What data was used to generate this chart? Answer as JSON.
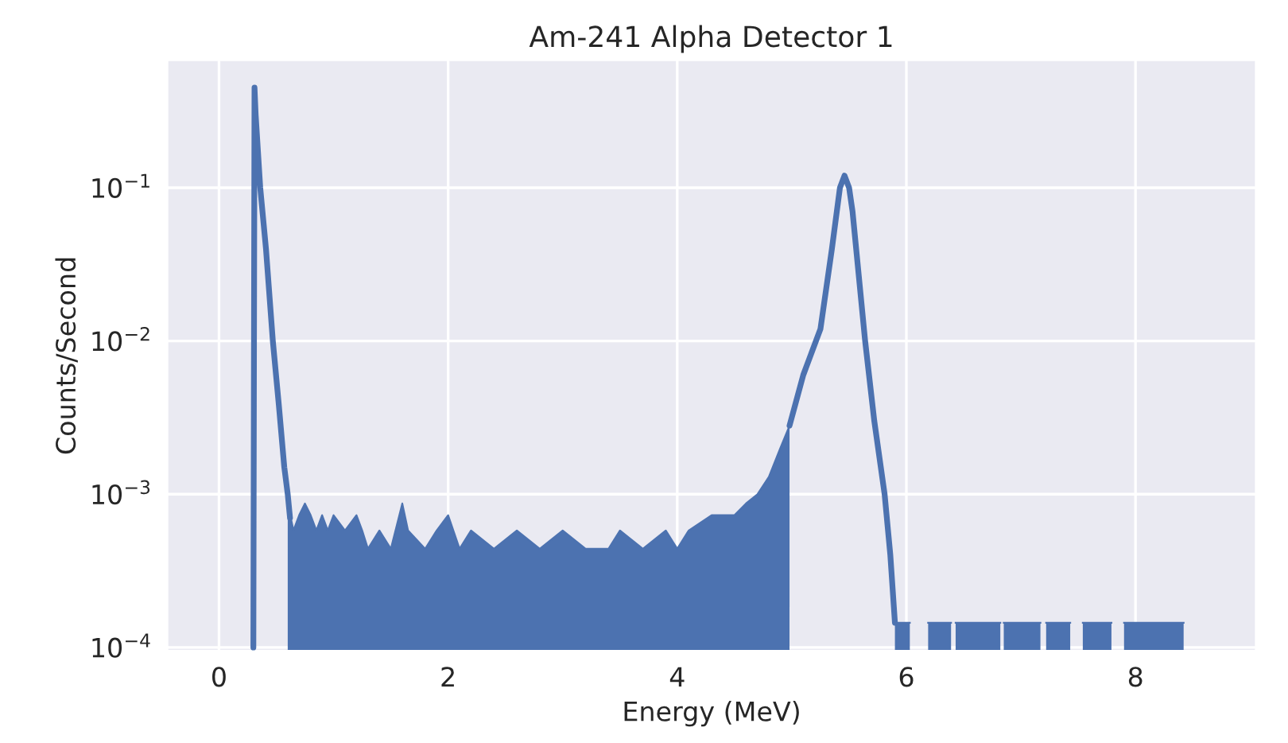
{
  "chart_data": {
    "type": "line",
    "title": "Am-241 Alpha Detector 1",
    "xlabel": "Energy (MeV)",
    "ylabel": "Counts/Second",
    "log": "y",
    "grid": true,
    "xlim": [
      -0.45,
      9.05
    ],
    "ylim": [
      9.5e-05,
      0.68
    ],
    "xticks": [
      0,
      2,
      4,
      6,
      8
    ],
    "yticks": [
      {
        "value": 0.0001,
        "label": "10$^{−4}$"
      },
      {
        "value": 0.001,
        "label": "10$^{−3}$"
      },
      {
        "value": 0.01,
        "label": "10$^{−2}$"
      },
      {
        "value": 0.1,
        "label": "10$^{−1}$"
      }
    ],
    "series": [
      {
        "color": "#4c72b0",
        "x": [
          0.3,
          0.31,
          0.32,
          0.36,
          0.41,
          0.47,
          0.52,
          0.57,
          0.6,
          0.62
        ],
        "values": [
          0.0001,
          0.45,
          0.3,
          0.1,
          0.04,
          0.01,
          0.004,
          0.0015,
          0.001,
          0.0007
        ]
      },
      {
        "type": "area",
        "color": "#4c72b0",
        "x": [
          0.6,
          0.65,
          0.7,
          0.75,
          0.8,
          0.85,
          0.9,
          0.95,
          1.0,
          1.1,
          1.2,
          1.25,
          1.3,
          1.4,
          1.5,
          1.6,
          1.65,
          1.8,
          1.9,
          2.0,
          2.1,
          2.2,
          2.4,
          2.6,
          2.8,
          3.0,
          3.2,
          3.4,
          3.5,
          3.7,
          3.9,
          4.0,
          4.1,
          4.3,
          4.5,
          4.6,
          4.7,
          4.8,
          4.9,
          4.98
        ],
        "values": [
          0.00087,
          0.00058,
          0.00073,
          0.00087,
          0.00073,
          0.00058,
          0.00073,
          0.00058,
          0.00073,
          0.00058,
          0.00073,
          0.00058,
          0.00044,
          0.00058,
          0.00044,
          0.00087,
          0.00058,
          0.00044,
          0.00058,
          0.00073,
          0.00044,
          0.00058,
          0.00044,
          0.00058,
          0.00044,
          0.00058,
          0.00044,
          0.00044,
          0.00058,
          0.00044,
          0.00058,
          0.00044,
          0.00058,
          0.00073,
          0.00073,
          0.00087,
          0.001,
          0.0013,
          0.002,
          0.0028
        ]
      },
      {
        "color": "#4c72b0",
        "x": [
          4.98,
          5.1,
          5.25,
          5.35,
          5.42,
          5.46,
          5.5,
          5.53,
          5.64,
          5.72,
          5.81,
          5.86,
          5.9
        ],
        "values": [
          0.0028,
          0.006,
          0.012,
          0.04,
          0.1,
          0.12,
          0.1,
          0.07,
          0.01,
          0.003,
          0.001,
          0.0004,
          0.000145
        ]
      },
      {
        "type": "area",
        "color": "#4c72b0",
        "x": [
          5.9,
          6.03,
          6.04,
          6.19,
          6.39,
          6.4,
          6.43,
          6.82,
          6.83,
          6.85,
          7.17,
          7.18,
          7.22,
          7.43,
          7.44,
          7.54,
          7.79,
          7.8,
          7.9,
          8.42
        ],
        "values": [
          0.000145,
          0.000145,
          null,
          0.000145,
          0.000145,
          null,
          0.000145,
          0.000145,
          null,
          0.000145,
          0.000145,
          null,
          0.000145,
          0.000145,
          null,
          0.000145,
          0.000145,
          null,
          0.000145,
          0.000145
        ]
      }
    ]
  }
}
